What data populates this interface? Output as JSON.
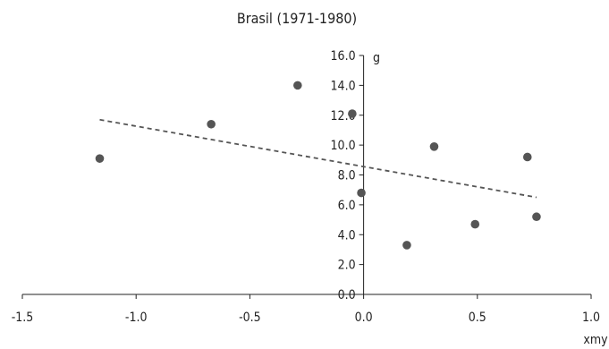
{
  "chart_data": {
    "type": "scatter",
    "title": "Brasil (1971-1980)",
    "xlabel": "xmy",
    "ylabel": "g",
    "xlim": [
      -1.5,
      1.0
    ],
    "ylim": [
      0.0,
      16.0
    ],
    "x_ticks": [
      -1.5,
      -1.0,
      -0.5,
      0.0,
      0.5,
      1.0
    ],
    "x_tick_labels": [
      "-1.5",
      "-1.0",
      "-0.5",
      "0.0",
      "0.5",
      "1.0"
    ],
    "y_ticks": [
      0,
      2,
      4,
      6,
      8,
      10,
      12,
      14,
      16
    ],
    "y_tick_labels": [
      "0.0",
      "2.0",
      "4.0",
      "6.0",
      "8.0",
      "10.0",
      "12.0",
      "14.0",
      "16.0"
    ],
    "grid": false,
    "legend": "none",
    "marker_color": "#555555",
    "series": [
      {
        "points": [
          {
            "x": -1.16,
            "y": 9.1
          },
          {
            "x": -0.67,
            "y": 11.4
          },
          {
            "x": -0.29,
            "y": 14.0
          },
          {
            "x": -0.05,
            "y": 12.1
          },
          {
            "x": -0.01,
            "y": 6.8
          },
          {
            "x": 0.19,
            "y": 3.3
          },
          {
            "x": 0.31,
            "y": 9.9
          },
          {
            "x": 0.49,
            "y": 4.7
          },
          {
            "x": 0.72,
            "y": 9.2
          },
          {
            "x": 0.76,
            "y": 5.2
          }
        ]
      }
    ],
    "trendline": {
      "style": "dashed",
      "color": "#555555",
      "from": {
        "x": -1.16,
        "y": 11.7
      },
      "to": {
        "x": 0.76,
        "y": 6.5
      }
    }
  }
}
